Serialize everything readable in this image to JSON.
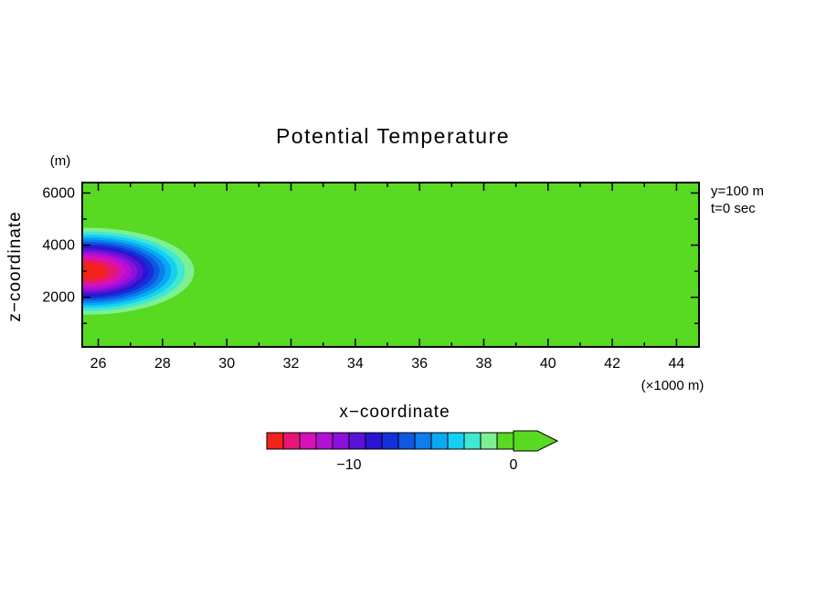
{
  "chart_data": {
    "type": "heatmap",
    "style": "filled-contour",
    "title": "Potential Temperature",
    "xlabel": "x−coordinate",
    "ylabel": "z−coordinate",
    "x_unit_label": "(×1000 m)",
    "y_unit_label": "(m)",
    "annotations": [
      "y=100 m",
      "t=0 sec"
    ],
    "xlim": [
      25.5,
      44.7
    ],
    "zlim": [
      100,
      6400
    ],
    "x_ticks": [
      26,
      28,
      30,
      32,
      34,
      36,
      38,
      40,
      42,
      44
    ],
    "x_minor_ticks": [
      27,
      29,
      31,
      33,
      35,
      37,
      39,
      41,
      43
    ],
    "z_ticks": [
      2000,
      4000,
      6000
    ],
    "z_minor_ticks": [
      1000,
      3000,
      5000
    ],
    "background_value": 0,
    "background_color": "#58d922",
    "bubble": {
      "center_x": 25.65,
      "center_z": 3000,
      "radius_x": 4.0,
      "radius_z": 2000,
      "min_perturbation": -15,
      "contour_interval": 1,
      "profile": "cosine"
    },
    "colormap": [
      "#f3231b",
      "#e61677",
      "#d611b8",
      "#b40fd6",
      "#8911d9",
      "#5a12d6",
      "#2b15d2",
      "#1430d8",
      "#1057e2",
      "#0d7eec",
      "#0aa8f2",
      "#16d0f2",
      "#40e8d2",
      "#7df093",
      "#58d922"
    ],
    "colorbar": {
      "min": -15,
      "max": 0,
      "cell_width_value": 1,
      "arrow_direction": "right",
      "labels": [
        {
          "value": -10,
          "text": "−10"
        },
        {
          "value": 0,
          "text": "0"
        }
      ]
    }
  }
}
